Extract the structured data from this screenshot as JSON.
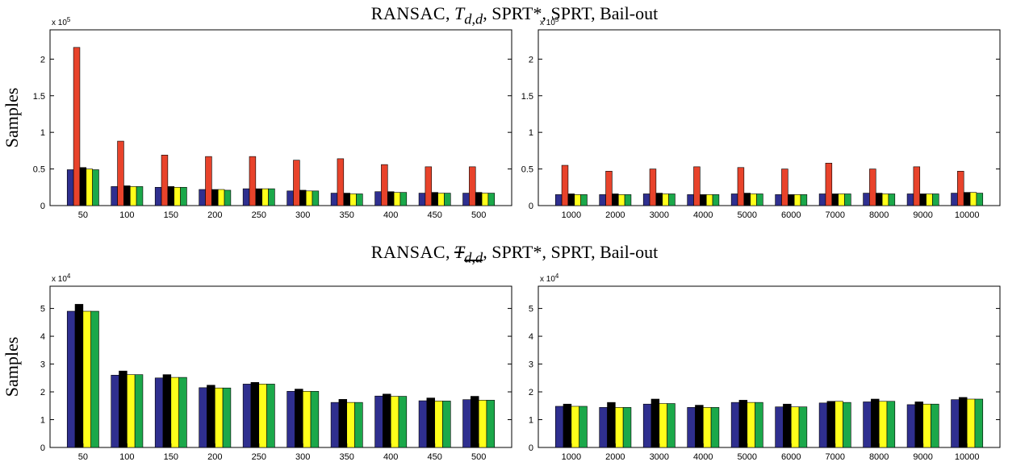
{
  "titles": {
    "top": {
      "part1": "RANSAC",
      "sep1": ", ",
      "part2": "T",
      "part2_sub": "d,d",
      "rest": ", SPRT*, SPRT, Bail-out"
    },
    "bottom": {
      "part1": "RANSAC",
      "sep1": ", ",
      "part2": "T",
      "part2_sub": "d,d",
      "rest": ", SPRT*, SPRT, Bail-out"
    }
  },
  "colors": {
    "RANSAC": "#2f2f8f",
    "Tdd": "#e8432b",
    "SPRT*": "#000000",
    "SPRT": "#ffff1a",
    "Bail-out": "#1ba84a"
  },
  "chart_data": [
    {
      "type": "bar",
      "ylabel": "Samples",
      "exponent": "x 10",
      "exponent_power": "5",
      "ylim": [
        0,
        2.4
      ],
      "yticks": [
        0,
        0.5,
        1,
        1.5,
        2
      ],
      "yticklabels": [
        "0",
        "0.5",
        "1",
        "1.5",
        "2"
      ],
      "categories": [
        "50",
        "100",
        "150",
        "200",
        "250",
        "300",
        "350",
        "400",
        "450",
        "500"
      ],
      "series": [
        {
          "color": "#2f2f8f",
          "values": [
            0.49,
            0.26,
            0.25,
            0.22,
            0.23,
            0.2,
            0.17,
            0.19,
            0.17,
            0.17
          ]
        },
        {
          "color": "#e8432b",
          "values": [
            2.16,
            0.88,
            0.69,
            0.67,
            0.67,
            0.62,
            0.64,
            0.56,
            0.53,
            0.53
          ]
        },
        {
          "color": "#000000",
          "values": [
            0.52,
            0.27,
            0.26,
            0.22,
            0.23,
            0.21,
            0.17,
            0.19,
            0.18,
            0.18
          ]
        },
        {
          "color": "#ffff1a",
          "values": [
            0.5,
            0.26,
            0.25,
            0.22,
            0.23,
            0.2,
            0.16,
            0.18,
            0.17,
            0.17
          ]
        },
        {
          "color": "#1ba84a",
          "values": [
            0.49,
            0.26,
            0.25,
            0.21,
            0.23,
            0.2,
            0.16,
            0.18,
            0.17,
            0.17
          ]
        }
      ]
    },
    {
      "type": "bar",
      "ylabel": "",
      "exponent": "x 10",
      "exponent_power": "5",
      "ylim": [
        0,
        2.4
      ],
      "yticks": [
        0,
        0.5,
        1,
        1.5,
        2
      ],
      "yticklabels": [
        "0",
        "0.5",
        "1",
        "1.5",
        "2"
      ],
      "categories": [
        "1000",
        "2000",
        "3000",
        "4000",
        "5000",
        "6000",
        "7000",
        "8000",
        "9000",
        "10000"
      ],
      "series": [
        {
          "color": "#2f2f8f",
          "values": [
            0.15,
            0.15,
            0.16,
            0.15,
            0.16,
            0.15,
            0.16,
            0.17,
            0.16,
            0.17
          ]
        },
        {
          "color": "#e8432b",
          "values": [
            0.55,
            0.47,
            0.5,
            0.53,
            0.52,
            0.5,
            0.58,
            0.5,
            0.53,
            0.47
          ]
        },
        {
          "color": "#000000",
          "values": [
            0.16,
            0.16,
            0.17,
            0.15,
            0.17,
            0.15,
            0.16,
            0.17,
            0.16,
            0.18
          ]
        },
        {
          "color": "#ffff1a",
          "values": [
            0.15,
            0.15,
            0.16,
            0.15,
            0.16,
            0.15,
            0.16,
            0.16,
            0.16,
            0.18
          ]
        },
        {
          "color": "#1ba84a",
          "values": [
            0.15,
            0.15,
            0.16,
            0.15,
            0.16,
            0.15,
            0.16,
            0.16,
            0.16,
            0.17
          ]
        }
      ]
    },
    {
      "type": "bar",
      "ylabel": "Samples",
      "exponent": "x 10",
      "exponent_power": "4",
      "ylim": [
        0,
        5.8
      ],
      "yticks": [
        0,
        1,
        2,
        3,
        4,
        5
      ],
      "yticklabels": [
        "0",
        "1",
        "2",
        "3",
        "4",
        "5"
      ],
      "categories": [
        "50",
        "100",
        "150",
        "200",
        "250",
        "300",
        "350",
        "400",
        "450",
        "500"
      ],
      "series": [
        {
          "color": "#2f2f8f",
          "values": [
            4.9,
            2.6,
            2.5,
            2.15,
            2.28,
            2.02,
            1.62,
            1.85,
            1.68,
            1.72
          ]
        },
        {
          "color": "#000000",
          "values": [
            5.15,
            2.75,
            2.62,
            2.24,
            2.34,
            2.1,
            1.73,
            1.92,
            1.78,
            1.84
          ]
        },
        {
          "color": "#ffff1a",
          "values": [
            4.9,
            2.62,
            2.52,
            2.14,
            2.28,
            2.02,
            1.62,
            1.84,
            1.67,
            1.7
          ]
        },
        {
          "color": "#1ba84a",
          "values": [
            4.9,
            2.62,
            2.52,
            2.14,
            2.28,
            2.02,
            1.62,
            1.84,
            1.67,
            1.7
          ]
        }
      ]
    },
    {
      "type": "bar",
      "ylabel": "",
      "exponent": "x 10",
      "exponent_power": "4",
      "ylim": [
        0,
        5.8
      ],
      "yticks": [
        0,
        1,
        2,
        3,
        4,
        5
      ],
      "yticklabels": [
        "0",
        "1",
        "2",
        "3",
        "4",
        "5"
      ],
      "categories": [
        "1000",
        "2000",
        "3000",
        "4000",
        "5000",
        "6000",
        "7000",
        "8000",
        "9000",
        "10000"
      ],
      "series": [
        {
          "color": "#2f2f8f",
          "values": [
            1.48,
            1.44,
            1.56,
            1.44,
            1.62,
            1.46,
            1.6,
            1.64,
            1.54,
            1.72
          ]
        },
        {
          "color": "#000000",
          "values": [
            1.56,
            1.62,
            1.74,
            1.52,
            1.7,
            1.56,
            1.66,
            1.74,
            1.64,
            1.8
          ]
        },
        {
          "color": "#ffff1a",
          "values": [
            1.48,
            1.44,
            1.58,
            1.44,
            1.62,
            1.46,
            1.66,
            1.66,
            1.56,
            1.74
          ]
        },
        {
          "color": "#1ba84a",
          "values": [
            1.48,
            1.44,
            1.58,
            1.44,
            1.62,
            1.46,
            1.62,
            1.66,
            1.56,
            1.74
          ]
        }
      ]
    }
  ]
}
